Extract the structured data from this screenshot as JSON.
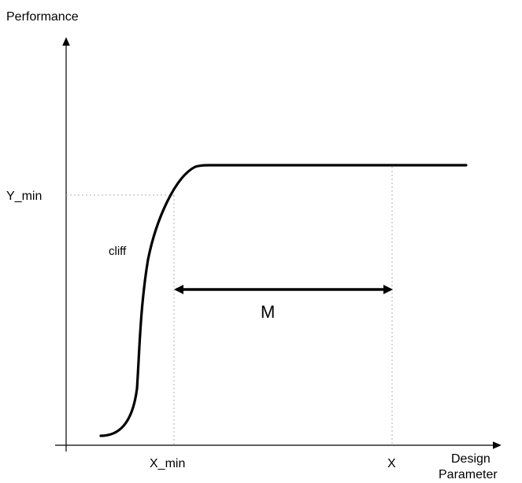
{
  "diagram": {
    "y_axis_label": "Performance",
    "x_axis_label_line1": "Design",
    "x_axis_label_line2": "Parameter",
    "y_min_label": "Y_min",
    "x_min_label": "X_min",
    "x_label": "X",
    "cliff_label": "cliff",
    "margin_label": "M",
    "colors": {
      "curve": "#000000",
      "axis": "#000000",
      "guide": "#b0b0b0",
      "background": "#ffffff"
    }
  }
}
